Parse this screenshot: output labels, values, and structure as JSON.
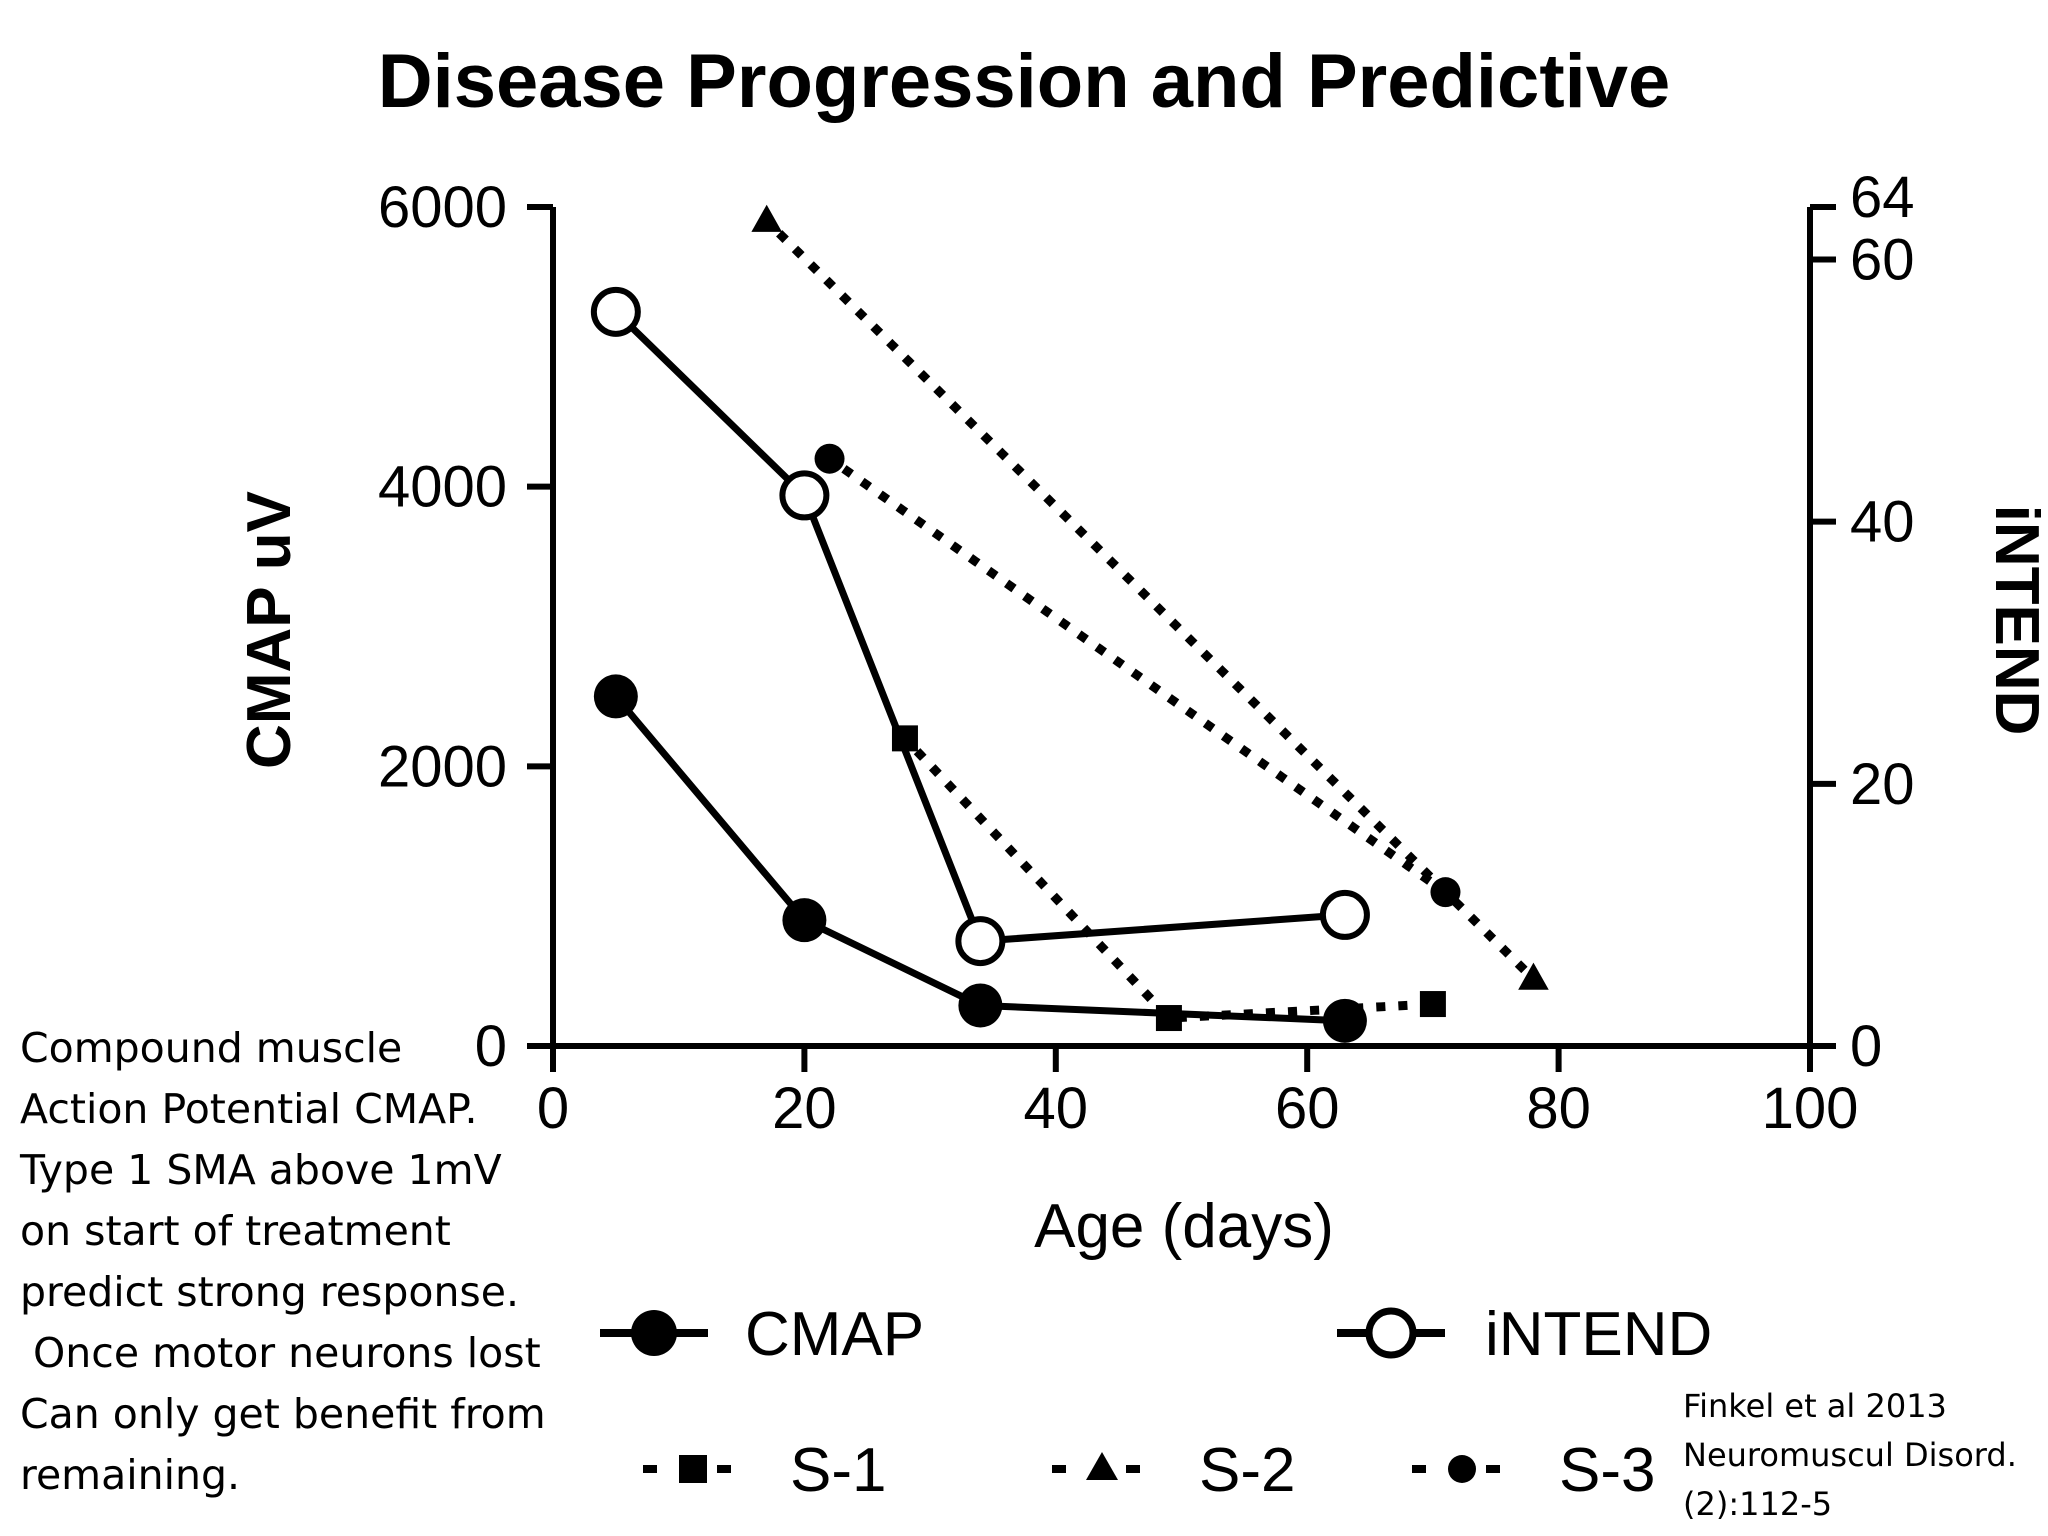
{
  "slide": {
    "title": "Disease Progression and Predictive",
    "note_lines": [
      "Compound muscle",
      "Action Potential CMAP.",
      "Type 1 SMA above 1mV",
      "on start of treatment",
      "predict strong response.",
      " Once motor neurons lost",
      "Can only get benefit from",
      "remaining."
    ],
    "citation_lines": [
      "Finkel et al 2013",
      "Neuromuscul Disord.",
      "(2):112-5"
    ]
  },
  "chart_data": {
    "type": "line",
    "title": "",
    "xlabel": "Age (days)",
    "ylabel": "CMAP uV",
    "y2label": "iNTEND",
    "xlim": [
      0,
      100
    ],
    "ylim": [
      0,
      6000
    ],
    "y2lim": [
      0,
      64
    ],
    "x_ticks": [
      0,
      20,
      40,
      60,
      80,
      100
    ],
    "y_ticks": [
      0,
      2000,
      4000,
      6000
    ],
    "y2_ticks": [
      0,
      20,
      40,
      60,
      64
    ],
    "grid": false,
    "legend_position": "bottom",
    "series": [
      {
        "name": "CMAP",
        "axis": "left",
        "line": "solid",
        "marker": "filled-circle",
        "points": [
          [
            5,
            2500
          ],
          [
            20,
            900
          ],
          [
            34,
            290
          ],
          [
            63,
            180
          ]
        ]
      },
      {
        "name": "iNTEND",
        "axis": "right",
        "line": "solid",
        "marker": "open-circle",
        "points": [
          [
            5,
            56
          ],
          [
            20,
            42
          ],
          [
            34,
            8
          ],
          [
            63,
            10
          ]
        ]
      },
      {
        "name": "S-1",
        "axis": "left",
        "line": "dotted",
        "marker": "square",
        "points": [
          [
            28,
            2200
          ],
          [
            49,
            200
          ],
          [
            70,
            300
          ]
        ]
      },
      {
        "name": "S-2",
        "axis": "left",
        "line": "dotted",
        "marker": "triangle",
        "points": [
          [
            17,
            5900
          ],
          [
            78,
            480
          ]
        ]
      },
      {
        "name": "S-3",
        "axis": "left",
        "line": "dotted",
        "marker": "filled-circle",
        "points": [
          [
            22,
            4200
          ],
          [
            71,
            1100
          ]
        ]
      }
    ]
  }
}
